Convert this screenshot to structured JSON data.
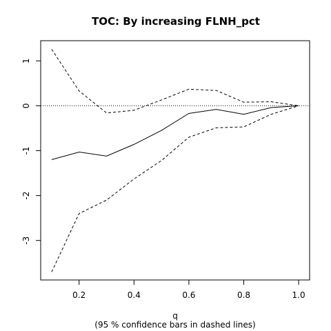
{
  "chart_data": {
    "type": "line",
    "title": "TOC: By increasing FLNH_pct",
    "xlabel": "q",
    "note": "(95 % confidence bars in dashed lines)",
    "xlim": [
      0.06,
      1.04
    ],
    "ylim": [
      -3.88,
      1.45
    ],
    "x_ticks": [
      0.2,
      0.4,
      0.6,
      0.8,
      1.0
    ],
    "x_tick_labels": [
      "0.2",
      "0.4",
      "0.6",
      "0.8",
      "1.0"
    ],
    "y_ticks": [
      -3,
      -2,
      -1,
      0,
      1
    ],
    "y_tick_labels": [
      "-3",
      "-2",
      "-1",
      "0",
      "1"
    ],
    "reference_line": {
      "y": 0,
      "style": "dotted"
    },
    "x": [
      0.1,
      0.2,
      0.3,
      0.4,
      0.5,
      0.6,
      0.7,
      0.8,
      0.9,
      1.0
    ],
    "series": [
      {
        "style": "solid",
        "values": [
          -1.2,
          -1.03,
          -1.12,
          -0.86,
          -0.55,
          -0.17,
          -0.08,
          -0.19,
          -0.04,
          0.0
        ]
      },
      {
        "style": "dashed",
        "values": [
          1.26,
          0.33,
          -0.16,
          -0.1,
          0.13,
          0.37,
          0.34,
          0.08,
          0.09,
          0.0
        ]
      },
      {
        "style": "dashed",
        "values": [
          -3.7,
          -2.4,
          -2.1,
          -1.63,
          -1.22,
          -0.7,
          -0.49,
          -0.47,
          -0.19,
          0.0
        ]
      }
    ]
  }
}
